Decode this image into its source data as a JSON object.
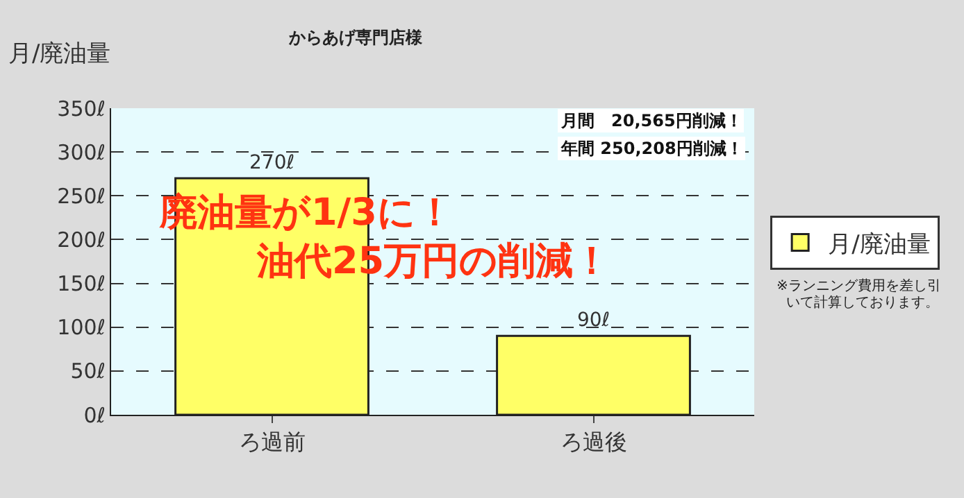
{
  "chart_data": {
    "type": "bar",
    "title": "からあげ専門店様",
    "ylabel": "月/廃油量",
    "categories": [
      "ろ過前",
      "ろ過後"
    ],
    "series": [
      {
        "name": "月/廃油量",
        "color": "#ffff66",
        "values": [
          270,
          90
        ],
        "value_labels": [
          "270ℓ",
          "90ℓ"
        ]
      }
    ],
    "ylim": [
      0,
      350
    ],
    "yticks": [
      {
        "value": 0,
        "label": "0ℓ"
      },
      {
        "value": 50,
        "label": "50ℓ"
      },
      {
        "value": 100,
        "label": "100ℓ"
      },
      {
        "value": 150,
        "label": "150ℓ"
      },
      {
        "value": 200,
        "label": "200ℓ"
      },
      {
        "value": 250,
        "label": "250ℓ"
      },
      {
        "value": 300,
        "label": "300ℓ"
      },
      {
        "value": 350,
        "label": "350ℓ"
      }
    ],
    "grid": "y",
    "legend": "right",
    "annotations": [
      "月間　20,565円削減！",
      "年間 250,208円削減！",
      "廃油量が1/3に！",
      "油代25万円の削減！",
      "※ランニング費用を差し引",
      "いて計算しております。"
    ]
  }
}
